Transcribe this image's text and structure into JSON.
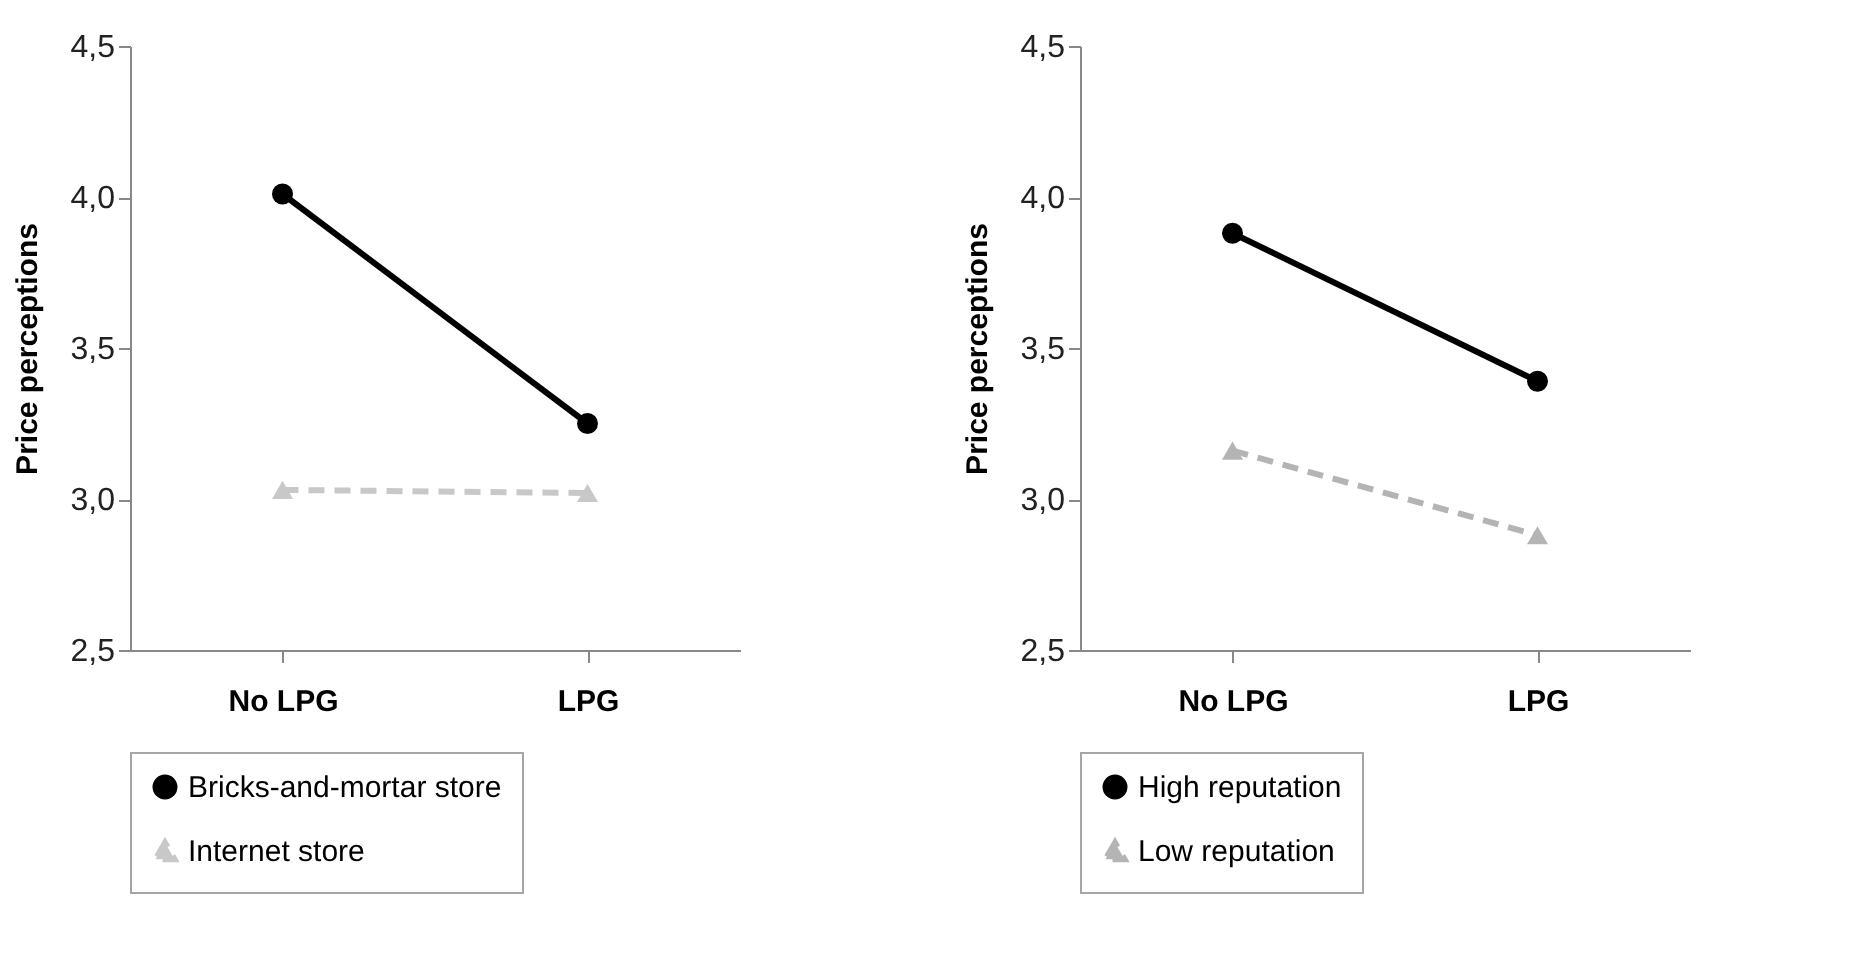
{
  "chart_data": [
    {
      "type": "line",
      "ylabel": "Price perceptions",
      "categories": [
        "No LPG",
        "LPG"
      ],
      "ylim": [
        2.5,
        4.5
      ],
      "yticks": [
        {
          "value": 2.5,
          "label": "2,5"
        },
        {
          "value": 3,
          "label": "3,0"
        },
        {
          "value": 3.5,
          "label": "3,5"
        },
        {
          "value": 4,
          "label": "4,0"
        },
        {
          "value": 4.5,
          "label": "4,5"
        }
      ],
      "grid": false,
      "legend": "bottom",
      "series": [
        {
          "name": "Bricks-and-mortar store",
          "color": "#000000",
          "marker": "circle",
          "line_style": "solid",
          "values": [
            4.01,
            3.25
          ]
        },
        {
          "name": "Internet store",
          "color": "#c8c8c8",
          "marker": "triangle",
          "line_style": "dashed",
          "values": [
            3.03,
            3.02
          ]
        }
      ]
    },
    {
      "type": "line",
      "ylabel": "Price perceptions",
      "categories": [
        "No LPG",
        "LPG"
      ],
      "ylim": [
        2.5,
        4.5
      ],
      "yticks": [
        {
          "value": 2.5,
          "label": "2,5"
        },
        {
          "value": 3,
          "label": "3,0"
        },
        {
          "value": 3.5,
          "label": "3,5"
        },
        {
          "value": 4,
          "label": "4,0"
        },
        {
          "value": 4.5,
          "label": "4,5"
        }
      ],
      "grid": false,
      "legend": "bottom",
      "series": [
        {
          "name": "High reputation",
          "color": "#000000",
          "marker": "circle",
          "line_style": "solid",
          "values": [
            3.88,
            3.39
          ]
        },
        {
          "name": "Low reputation",
          "color": "#b4b4b4",
          "marker": "triangle",
          "line_style": "dashed",
          "values": [
            3.16,
            2.88
          ]
        }
      ]
    }
  ]
}
